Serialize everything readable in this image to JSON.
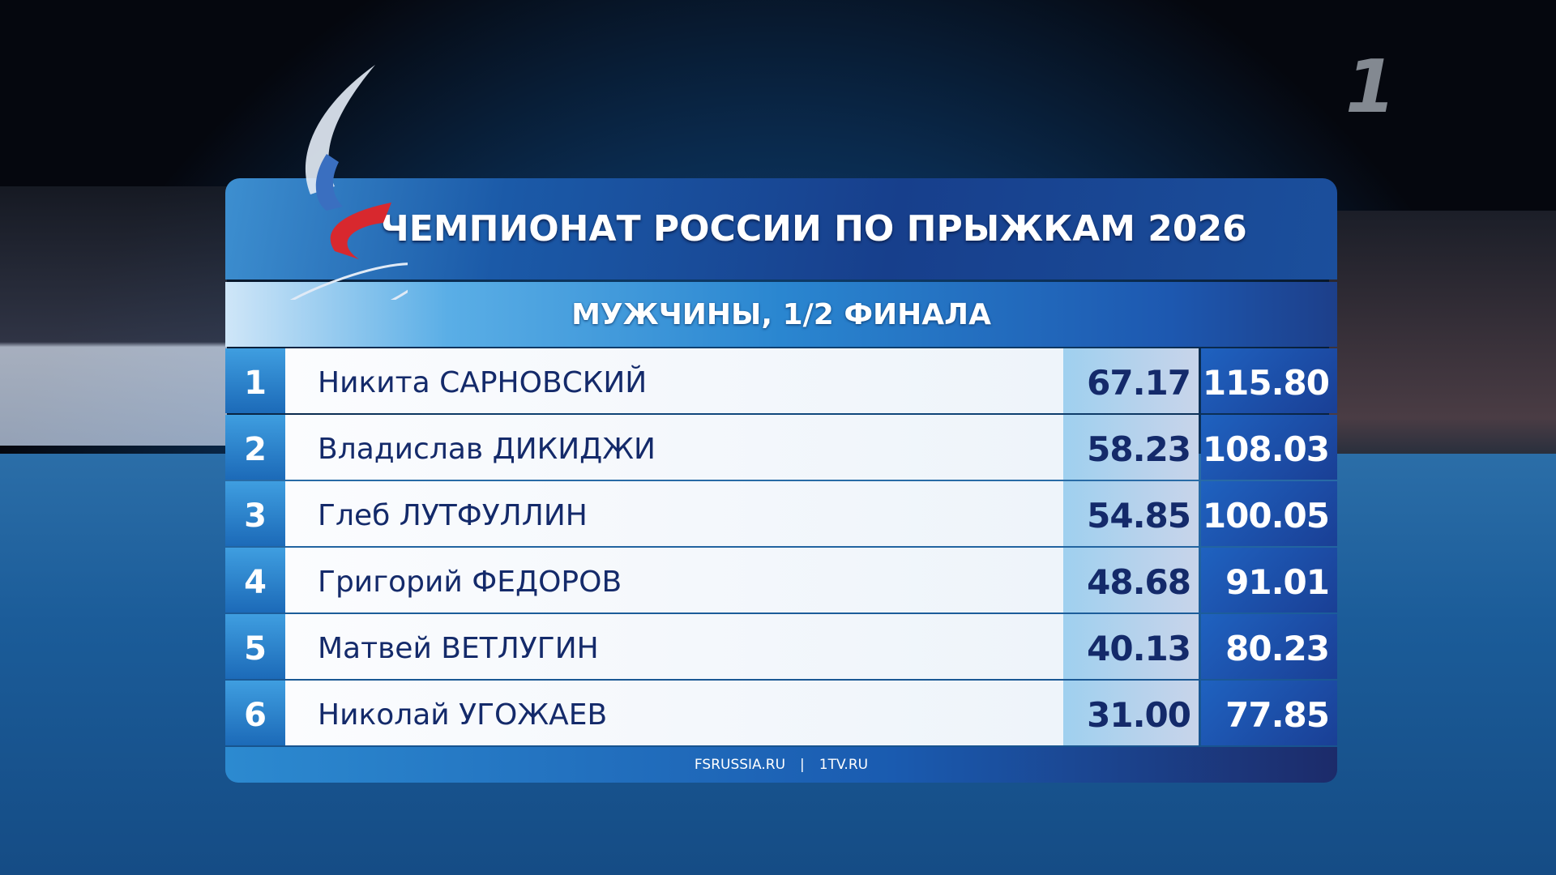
{
  "broadcaster_logo": "1",
  "header": {
    "title": "ЧЕМПИОНАТ РОССИИ ПО ПРЫЖКАМ 2026",
    "subtitle": "МУЖЧИНЫ, 1/2 ФИНАЛА"
  },
  "results": [
    {
      "rank": "1",
      "name": "Никита САРНОВСКИЙ",
      "score": "67.17",
      "total": "115.80"
    },
    {
      "rank": "2",
      "name": "Владислав ДИКИДЖИ",
      "score": "58.23",
      "total": "108.03"
    },
    {
      "rank": "3",
      "name": "Глеб ЛУТФУЛЛИН",
      "score": "54.85",
      "total": "100.05"
    },
    {
      "rank": "4",
      "name": "Григорий ФЕДОРОВ",
      "score": "48.68",
      "total": "91.01"
    },
    {
      "rank": "5",
      "name": "Матвей ВЕТЛУГИН",
      "score": "40.13",
      "total": "80.23"
    },
    {
      "rank": "6",
      "name": "Николай УГОЖАЕВ",
      "score": "31.00",
      "total": "77.85"
    }
  ],
  "footer": {
    "site1": "FSRUSSIA.RU",
    "separator": "|",
    "site2": "1TV.RU"
  },
  "colors": {
    "accent": "#1b4f9c",
    "text": "#142a6a",
    "logo_red": "#d8282e"
  }
}
